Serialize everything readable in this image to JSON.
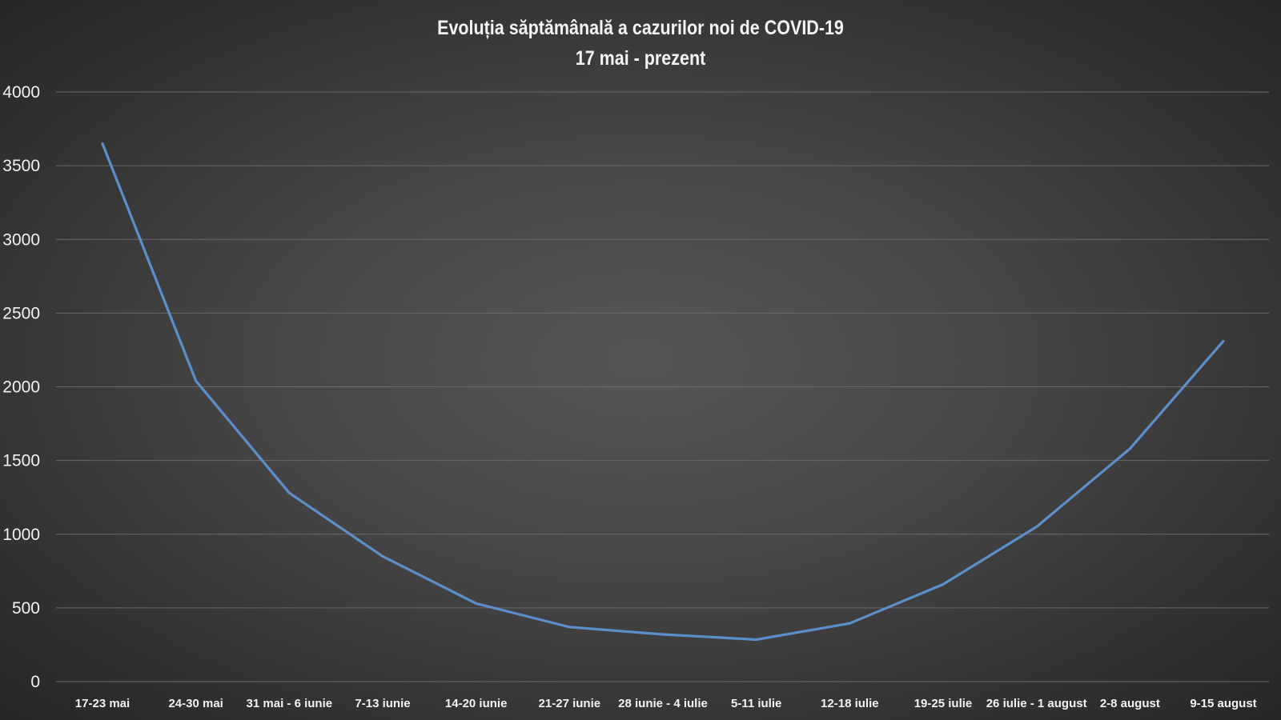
{
  "chart_data": {
    "type": "line",
    "title": "Evoluția săptămânală a cazurilor noi de COVID-19",
    "subtitle": "17 mai - prezent",
    "xlabel": "",
    "ylabel": "",
    "ylim": [
      0,
      4000
    ],
    "yticks": [
      "0",
      "500",
      "1000",
      "1500",
      "2000",
      "2500",
      "3000",
      "3500",
      "4000"
    ],
    "grid": true,
    "legend": "none",
    "line_color": "#5b8fc9",
    "categories": [
      "17-23 mai",
      "24-30 mai",
      "31 mai - 6 iunie",
      "7-13 iunie",
      "14-20 iunie",
      "21-27 iunie",
      "28 iunie - 4 iulie",
      "5-11 iulie",
      "12-18 iulie",
      "19-25 iulie",
      "26 iulie - 1 august",
      "2-8 august",
      "9-15 august"
    ],
    "series": [
      {
        "values": [
          3650,
          2040,
          1280,
          850,
          530,
          370,
          320,
          285,
          395,
          660,
          1050,
          1580,
          2310
        ]
      }
    ]
  }
}
